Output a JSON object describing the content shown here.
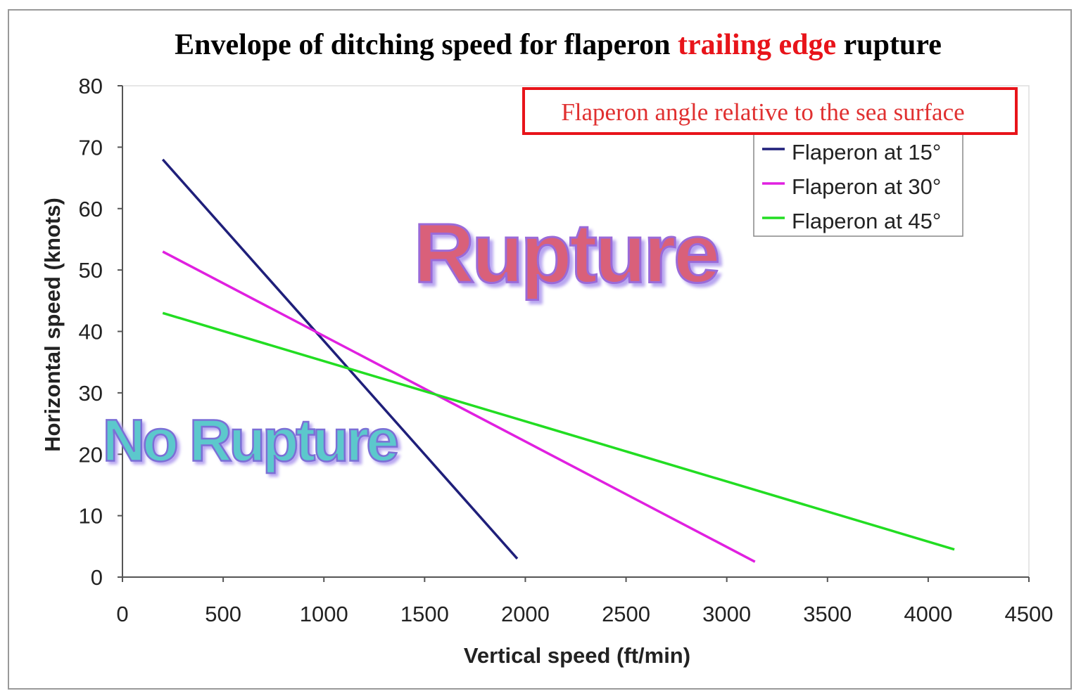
{
  "chart_data": {
    "type": "line",
    "title_parts": [
      "Envelope of ditching speed for flaperon ",
      "trailing edge",
      " rupture"
    ],
    "title_highlight_color": "#e8141a",
    "xlabel": "Vertical speed (ft/min)",
    "ylabel": "Horizontal speed (knots)",
    "xlim": [
      0,
      4500
    ],
    "ylim": [
      0,
      80
    ],
    "xticks": [
      0,
      500,
      1000,
      1500,
      2000,
      2500,
      3000,
      3500,
      4000,
      4500
    ],
    "yticks": [
      0,
      10,
      20,
      30,
      40,
      50,
      60,
      70,
      80
    ],
    "grid": false,
    "legend_title": "Flaperon angle relative to the sea surface",
    "legend_position": "top-right",
    "series": [
      {
        "name": "Flaperon at 15°",
        "color": "#1f1f7a",
        "x": [
          200,
          1960
        ],
        "y": [
          68,
          3
        ]
      },
      {
        "name": "Flaperon at 30°",
        "color": "#e020e0",
        "x": [
          200,
          3140
        ],
        "y": [
          53,
          2.5
        ]
      },
      {
        "name": "Flaperon at 45°",
        "color": "#22dd22",
        "x": [
          200,
          4130
        ],
        "y": [
          43,
          4.5
        ]
      }
    ],
    "annotations": [
      {
        "text": "Rupture",
        "x": 2200,
        "y": 48,
        "color": "#d9607a"
      },
      {
        "text": "No Rupture",
        "x": 700,
        "y": 18,
        "color": "#5cc8cc"
      }
    ]
  }
}
